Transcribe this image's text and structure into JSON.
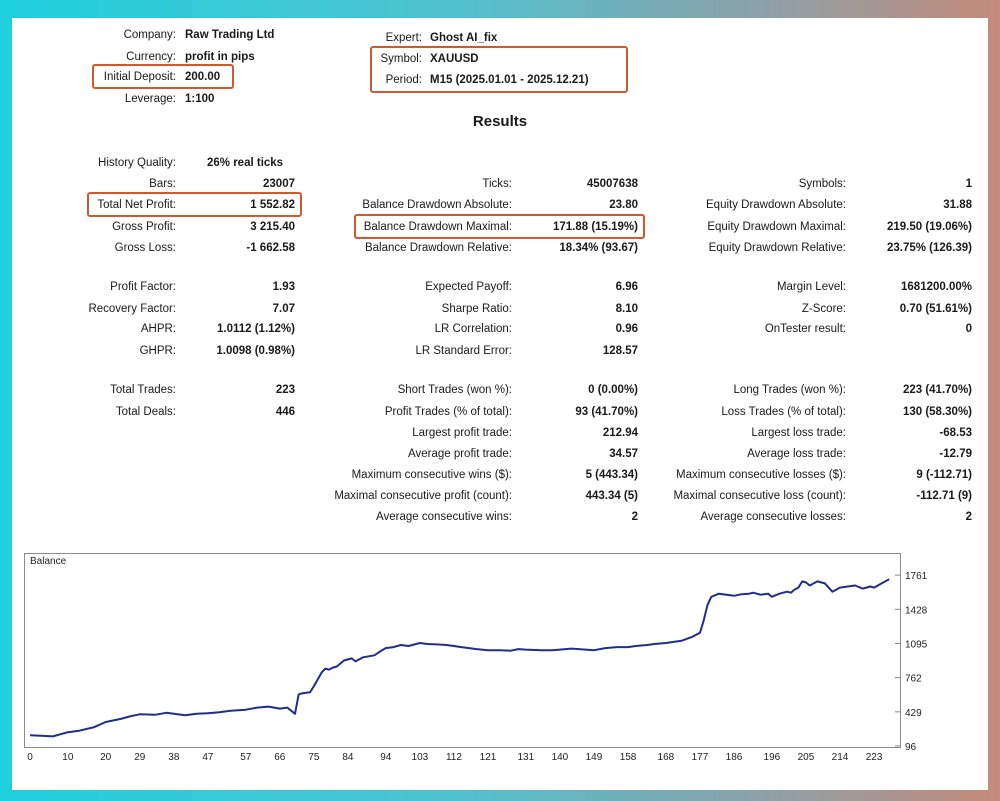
{
  "header": {
    "company_label": "Company:",
    "company_value": "Raw Trading Ltd",
    "currency_label": "Currency:",
    "currency_value": "profit in pips",
    "deposit_label": "Initial Deposit:",
    "deposit_value": "200.00",
    "leverage_label": "Leverage:",
    "leverage_value": "1:100",
    "expert_label": "Expert:",
    "expert_value": "Ghost AI_fix",
    "symbol_label": "Symbol:",
    "symbol_value": "XAUUSD",
    "period_label": "Period:",
    "period_value": "M15 (2025.01.01 - 2025.12.21)"
  },
  "results_title": "Results",
  "stats": {
    "history_quality": {
      "label": "History Quality:",
      "value": "26% real ticks"
    },
    "bars": {
      "label": "Bars:",
      "value": "23007"
    },
    "total_net_profit": {
      "label": "Total Net Profit:",
      "value": "1 552.82"
    },
    "gross_profit": {
      "label": "Gross Profit:",
      "value": "3 215.40"
    },
    "gross_loss": {
      "label": "Gross Loss:",
      "value": "-1 662.58"
    },
    "ticks": {
      "label": "Ticks:",
      "value": "45007638"
    },
    "balance_dd_abs": {
      "label": "Balance Drawdown Absolute:",
      "value": "23.80"
    },
    "balance_dd_max": {
      "label": "Balance Drawdown Maximal:",
      "value": "171.88 (15.19%)"
    },
    "balance_dd_rel": {
      "label": "Balance Drawdown Relative:",
      "value": "18.34% (93.67)"
    },
    "symbols": {
      "label": "Symbols:",
      "value": "1"
    },
    "equity_dd_abs": {
      "label": "Equity Drawdown Absolute:",
      "value": "31.88"
    },
    "equity_dd_max": {
      "label": "Equity Drawdown Maximal:",
      "value": "219.50 (19.06%)"
    },
    "equity_dd_rel": {
      "label": "Equity Drawdown Relative:",
      "value": "23.75% (126.39)"
    },
    "profit_factor": {
      "label": "Profit Factor:",
      "value": "1.93"
    },
    "recovery_factor": {
      "label": "Recovery Factor:",
      "value": "7.07"
    },
    "ahpr": {
      "label": "AHPR:",
      "value": "1.0112 (1.12%)"
    },
    "ghpr": {
      "label": "GHPR:",
      "value": "1.0098 (0.98%)"
    },
    "expected_payoff": {
      "label": "Expected Payoff:",
      "value": "6.96"
    },
    "sharpe_ratio": {
      "label": "Sharpe Ratio:",
      "value": "8.10"
    },
    "lr_correlation": {
      "label": "LR Correlation:",
      "value": "0.96"
    },
    "lr_std_error": {
      "label": "LR Standard Error:",
      "value": "128.57"
    },
    "margin_level": {
      "label": "Margin Level:",
      "value": "1681200.00%"
    },
    "z_score": {
      "label": "Z-Score:",
      "value": "0.70 (51.61%)"
    },
    "ontester": {
      "label": "OnTester result:",
      "value": "0"
    },
    "total_trades": {
      "label": "Total Trades:",
      "value": "223"
    },
    "total_deals": {
      "label": "Total Deals:",
      "value": "446"
    },
    "short_trades": {
      "label": "Short Trades (won %):",
      "value": "0 (0.00%)"
    },
    "profit_trades": {
      "label": "Profit Trades (% of total):",
      "value": "93 (41.70%)"
    },
    "largest_profit": {
      "label": "Largest profit trade:",
      "value": "212.94"
    },
    "average_profit": {
      "label": "Average profit trade:",
      "value": "34.57"
    },
    "max_consec_wins": {
      "label": "Maximum consecutive wins ($):",
      "value": "5 (443.34)"
    },
    "maximal_consec_profit": {
      "label": "Maximal consecutive profit (count):",
      "value": "443.34 (5)"
    },
    "avg_consec_wins": {
      "label": "Average consecutive wins:",
      "value": "2"
    },
    "long_trades": {
      "label": "Long Trades (won %):",
      "value": "223 (41.70%)"
    },
    "loss_trades": {
      "label": "Loss Trades (% of total):",
      "value": "130 (58.30%)"
    },
    "largest_loss": {
      "label": "Largest loss trade:",
      "value": "-68.53"
    },
    "average_loss": {
      "label": "Average loss trade:",
      "value": "-12.79"
    },
    "max_consec_losses": {
      "label": "Maximum consecutive losses ($):",
      "value": "9 (-112.71)"
    },
    "maximal_consec_loss": {
      "label": "Maximal consecutive loss (count):",
      "value": "-112.71 (9)"
    },
    "avg_consec_losses": {
      "label": "Average consecutive losses:",
      "value": "2"
    }
  },
  "colors": {
    "highlight": "#d2592b",
    "balance_line": "#1f2e8a"
  },
  "chart_data": {
    "type": "line",
    "title": "Balance",
    "xlim": [
      0,
      228
    ],
    "ylim": [
      96,
      1850
    ],
    "x_ticks": [
      0,
      10,
      20,
      29,
      38,
      47,
      57,
      66,
      75,
      84,
      94,
      103,
      112,
      121,
      131,
      140,
      149,
      158,
      168,
      177,
      186,
      196,
      205,
      214,
      223
    ],
    "y_ticks": [
      96,
      429,
      762,
      1095,
      1428,
      1761
    ],
    "series": [
      {
        "x": [
          0,
          3,
          6,
          10,
          13,
          17,
          20,
          24,
          27,
          29,
          33,
          36,
          38,
          41,
          44,
          47,
          50,
          53,
          57,
          60,
          63,
          66,
          68,
          70,
          71,
          72,
          74,
          75,
          77,
          78,
          79,
          80,
          81,
          83,
          85,
          86,
          88,
          91,
          93,
          94,
          96,
          98,
          100,
          103,
          105,
          108,
          110,
          112,
          114,
          116,
          118,
          121,
          124,
          127,
          129,
          131,
          135,
          138,
          140,
          143,
          145,
          149,
          152,
          155,
          158,
          160,
          163,
          165,
          168,
          170,
          172,
          175,
          177,
          178,
          179,
          180,
          182,
          184,
          186,
          188,
          190,
          191,
          193,
          195,
          196,
          198,
          200,
          201,
          202,
          203,
          204,
          205,
          206,
          208,
          210,
          212,
          214,
          216,
          218,
          220,
          222,
          223,
          225,
          227
        ],
        "y": [
          200,
          195,
          190,
          230,
          245,
          280,
          330,
          360,
          390,
          405,
          400,
          420,
          410,
          395,
          410,
          415,
          425,
          440,
          450,
          470,
          480,
          460,
          470,
          410,
          600,
          610,
          620,
          680,
          810,
          850,
          840,
          860,
          870,
          930,
          950,
          920,
          960,
          980,
          1030,
          1050,
          1060,
          1080,
          1070,
          1100,
          1090,
          1085,
          1080,
          1070,
          1060,
          1050,
          1040,
          1030,
          1030,
          1025,
          1040,
          1035,
          1030,
          1030,
          1035,
          1045,
          1040,
          1030,
          1050,
          1060,
          1060,
          1070,
          1080,
          1090,
          1100,
          1110,
          1120,
          1160,
          1200,
          1320,
          1470,
          1550,
          1580,
          1570,
          1560,
          1575,
          1580,
          1590,
          1570,
          1580,
          1550,
          1580,
          1600,
          1590,
          1620,
          1640,
          1700,
          1690,
          1660,
          1700,
          1680,
          1600,
          1640,
          1650,
          1660,
          1630,
          1650,
          1640,
          1680,
          1720
        ]
      }
    ]
  }
}
